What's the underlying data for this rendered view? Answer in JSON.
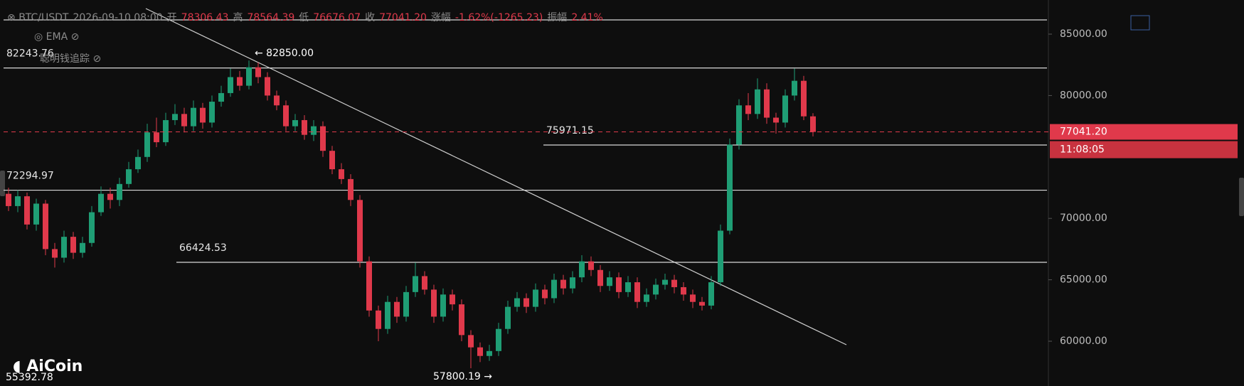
{
  "header": {
    "symbol": "BTC/USDT",
    "time": "2026-09-10 08:00",
    "fields": [
      {
        "label": "开",
        "value": "78306.43"
      },
      {
        "label": "高",
        "value": "78564.39"
      },
      {
        "label": "低",
        "value": "76676.07"
      },
      {
        "label": "收",
        "value": "77041.20"
      },
      {
        "label": "涨幅",
        "value": "-1.62%(-1265.23)"
      },
      {
        "label": "振幅",
        "value": "2.41%"
      }
    ]
  },
  "indicators": {
    "ema": "EMA",
    "smart": "聪明钱追踪"
  },
  "logo": "AiCoin",
  "chart_data": {
    "type": "candlestick",
    "up_color": "#1f9e75",
    "down_color": "#e0394b",
    "ylim": [
      56354,
      87778
    ],
    "yticks": [
      {
        "value": 60000,
        "label": "60000.00"
      },
      {
        "value": 65000,
        "label": "65000.00"
      },
      {
        "value": 70000,
        "label": "70000.00"
      },
      {
        "value": 80000,
        "label": "80000.00"
      },
      {
        "value": 85000,
        "label": "85000.00"
      }
    ],
    "hlines": [
      {
        "value": 86157
      },
      {
        "value": 82243.76,
        "label": "82243.76"
      },
      {
        "value": 72294.97,
        "label": "72294.97"
      },
      {
        "value": 66424.53,
        "label": "66424.53"
      },
      {
        "value": 75971.15,
        "label": "75971.15"
      }
    ],
    "annotations": [
      {
        "value": 82850,
        "label": "← 82850.00"
      },
      {
        "value": 57800.19,
        "label": "57800.19 →"
      },
      {
        "value": 55392.78,
        "label": "55392.78"
      }
    ],
    "last_label": "77041.20",
    "countdown": "11:08:05",
    "ohlc": [
      [
        72000,
        72500,
        70600,
        71000
      ],
      [
        71000,
        72300,
        70500,
        71800
      ],
      [
        71800,
        72100,
        69100,
        69500
      ],
      [
        69500,
        71600,
        69000,
        71200
      ],
      [
        71200,
        71500,
        67000,
        67500
      ],
      [
        67500,
        68000,
        66000,
        66800
      ],
      [
        66800,
        69000,
        66400,
        68500
      ],
      [
        68500,
        68900,
        66700,
        67200
      ],
      [
        67200,
        68500,
        66800,
        68000
      ],
      [
        68000,
        71000,
        67700,
        70500
      ],
      [
        70500,
        72600,
        70200,
        72000
      ],
      [
        72000,
        72500,
        70800,
        71500
      ],
      [
        71500,
        73300,
        71000,
        72800
      ],
      [
        72800,
        74600,
        72500,
        74000
      ],
      [
        74000,
        75600,
        73700,
        75000
      ],
      [
        75000,
        77700,
        74600,
        77000
      ],
      [
        77000,
        78200,
        75800,
        76200
      ],
      [
        76200,
        78600,
        75900,
        78000
      ],
      [
        78000,
        79300,
        77600,
        78500
      ],
      [
        78500,
        79000,
        77000,
        77500
      ],
      [
        77500,
        79600,
        77100,
        79000
      ],
      [
        79000,
        79400,
        77300,
        77800
      ],
      [
        77800,
        80000,
        77400,
        79500
      ],
      [
        79500,
        80800,
        79100,
        80200
      ],
      [
        80200,
        82200,
        79900,
        81500
      ],
      [
        81500,
        82000,
        80400,
        80800
      ],
      [
        80800,
        82850,
        80500,
        82300
      ],
      [
        82300,
        82700,
        81000,
        81500
      ],
      [
        81500,
        81900,
        79600,
        80000
      ],
      [
        80000,
        80400,
        78800,
        79200
      ],
      [
        79200,
        79600,
        77100,
        77500
      ],
      [
        77500,
        78500,
        77100,
        78000
      ],
      [
        78000,
        78400,
        76400,
        76800
      ],
      [
        76800,
        78000,
        76300,
        77500
      ],
      [
        77500,
        77900,
        75000,
        75500
      ],
      [
        75500,
        75900,
        73600,
        74000
      ],
      [
        74000,
        74500,
        72800,
        73200
      ],
      [
        73200,
        73600,
        71000,
        71500
      ],
      [
        71500,
        71900,
        66000,
        66500
      ],
      [
        66500,
        66900,
        62000,
        62500
      ],
      [
        62500,
        62900,
        60000,
        61000
      ],
      [
        61000,
        63700,
        60600,
        63200
      ],
      [
        63200,
        63600,
        61500,
        62000
      ],
      [
        62000,
        64500,
        61600,
        64000
      ],
      [
        64000,
        66400,
        63600,
        65300
      ],
      [
        65300,
        65700,
        63800,
        64200
      ],
      [
        64200,
        64600,
        61500,
        62000
      ],
      [
        62000,
        64300,
        61600,
        63800
      ],
      [
        63800,
        64200,
        62500,
        63000
      ],
      [
        63000,
        63400,
        60000,
        60500
      ],
      [
        60500,
        60900,
        57800.19,
        59500
      ],
      [
        59500,
        59900,
        58300,
        58800
      ],
      [
        58800,
        59700,
        58400,
        59200
      ],
      [
        59200,
        61500,
        58800,
        61000
      ],
      [
        61000,
        63300,
        60600,
        62800
      ],
      [
        62800,
        64000,
        62400,
        63500
      ],
      [
        63500,
        63900,
        62300,
        62800
      ],
      [
        62800,
        64700,
        62400,
        64200
      ],
      [
        64200,
        64600,
        63000,
        63500
      ],
      [
        63500,
        65500,
        63100,
        65000
      ],
      [
        65000,
        65400,
        63800,
        64300
      ],
      [
        64300,
        65700,
        63900,
        65200
      ],
      [
        65200,
        67000,
        64800,
        66500
      ],
      [
        66500,
        66900,
        65300,
        65800
      ],
      [
        65800,
        66200,
        64000,
        64500
      ],
      [
        64500,
        65700,
        64100,
        65200
      ],
      [
        65200,
        65600,
        63500,
        64000
      ],
      [
        64000,
        65300,
        63600,
        64800
      ],
      [
        64800,
        65200,
        62700,
        63200
      ],
      [
        63200,
        64300,
        62800,
        63800
      ],
      [
        63800,
        65100,
        63400,
        64600
      ],
      [
        64600,
        65500,
        64200,
        65000
      ],
      [
        65000,
        65400,
        63900,
        64400
      ],
      [
        64400,
        64800,
        63300,
        63800
      ],
      [
        63800,
        64200,
        62700,
        63200
      ],
      [
        63200,
        63600,
        62500,
        62900
      ],
      [
        62900,
        65300,
        62600,
        64800
      ],
      [
        64800,
        69500,
        64500,
        69000
      ],
      [
        69000,
        76500,
        68700,
        76000
      ],
      [
        76000,
        79700,
        75600,
        79200
      ],
      [
        79200,
        80200,
        78000,
        78500
      ],
      [
        78500,
        81400,
        78100,
        80500
      ],
      [
        80500,
        81000,
        77700,
        78200
      ],
      [
        78200,
        78600,
        76900,
        77800
      ],
      [
        77800,
        80500,
        77400,
        80000
      ],
      [
        80000,
        82200,
        79600,
        81200
      ],
      [
        81200,
        81600,
        78000,
        78306.43
      ],
      [
        78306.43,
        78564.39,
        76676.07,
        77041.2
      ]
    ]
  }
}
